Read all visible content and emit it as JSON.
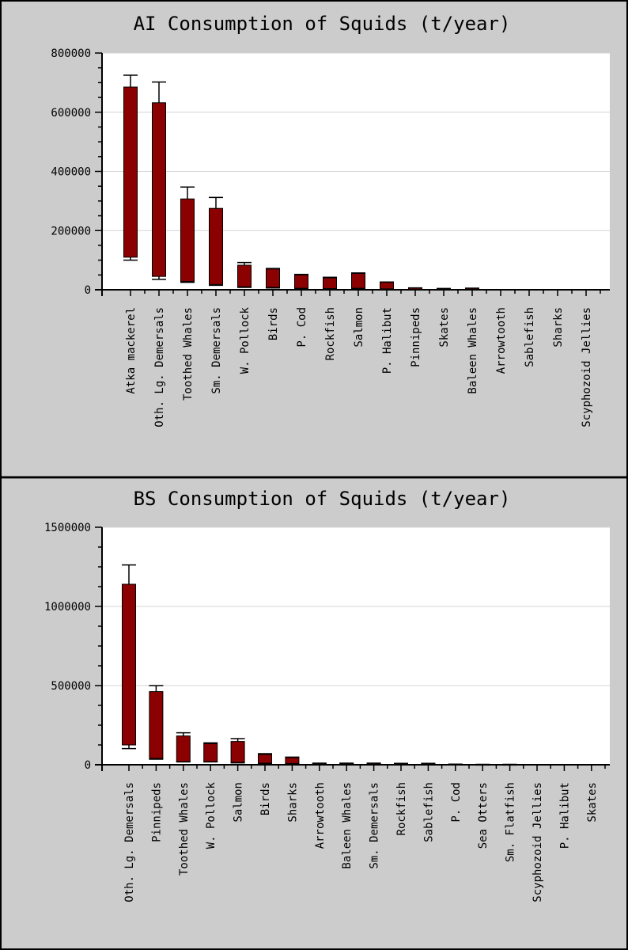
{
  "colors": {
    "bar": "#8b0000",
    "panel": "#cccccc",
    "plot": "#ffffff"
  },
  "chart_data": [
    {
      "type": "bar",
      "title": "AI Consumption of Squids (t/year)",
      "ylim": [
        0,
        800000
      ],
      "yticks": [
        0,
        200000,
        400000,
        600000,
        800000
      ],
      "grid": true,
      "categories": [
        "Atka mackerel",
        "Oth. Lg. Demersals",
        "Toothed Whales",
        "Sm. Demersals",
        "W. Pollock",
        "Birds",
        "P. Cod",
        "Rockfish",
        "Salmon",
        "P. Halibut",
        "Pinnipeds",
        "Skates",
        "Baleen Whales",
        "Arrowtooth",
        "Sablefish",
        "Sharks",
        "Scyphozoid Jellies"
      ],
      "low": [
        110000,
        45000,
        28000,
        18000,
        10000,
        8000,
        5000,
        4000,
        5000,
        3000,
        1000,
        500,
        500,
        0,
        0,
        0,
        0
      ],
      "high": [
        685000,
        632000,
        307000,
        275000,
        83000,
        70000,
        50000,
        40000,
        55000,
        25000,
        6000,
        4000,
        5000,
        0,
        0,
        0,
        0
      ],
      "err_low": [
        100000,
        35000,
        25000,
        15000,
        8000,
        6000,
        4000,
        3000,
        4000,
        2000,
        500,
        300,
        300,
        0,
        0,
        0,
        0
      ],
      "err_high": [
        725000,
        702000,
        347000,
        312000,
        92000,
        72000,
        52000,
        42000,
        57000,
        26000,
        6500,
        4500,
        5500,
        0,
        0,
        0,
        0
      ]
    },
    {
      "type": "bar",
      "title": "BS Consumption of Squids (t/year)",
      "ylim": [
        0,
        1500000
      ],
      "yticks": [
        0,
        500000,
        1000000,
        1500000
      ],
      "grid": true,
      "categories": [
        "Oth. Lg. Demersals",
        "Pinnipeds",
        "Toothed Whales",
        "W. Pollock",
        "Salmon",
        "Birds",
        "Sharks",
        "Arrowtooth",
        "Baleen Whales",
        "Sm. Demersals",
        "Rockfish",
        "Sablefish",
        "P. Cod",
        "Sea Otters",
        "Sm. Flatfish",
        "Scyphozoid Jellies",
        "P. Halibut",
        "Skates"
      ],
      "low": [
        125000,
        40000,
        20000,
        20000,
        15000,
        10000,
        8000,
        3000,
        3000,
        3000,
        2000,
        2000,
        1000,
        500,
        500,
        0,
        0,
        0
      ],
      "high": [
        1140000,
        462000,
        182000,
        133000,
        147000,
        65000,
        45000,
        9000,
        9000,
        9000,
        8000,
        8000,
        3000,
        2000,
        2000,
        0,
        0,
        0
      ],
      "err_low": [
        102000,
        35000,
        18000,
        18000,
        12000,
        8000,
        6000,
        2000,
        2000,
        2000,
        1500,
        1500,
        800,
        300,
        300,
        0,
        0,
        0
      ],
      "err_high": [
        1262000,
        500000,
        202000,
        138000,
        165000,
        70000,
        48000,
        10000,
        10000,
        10000,
        9000,
        9000,
        3500,
        2500,
        2500,
        0,
        0,
        0
      ]
    }
  ]
}
